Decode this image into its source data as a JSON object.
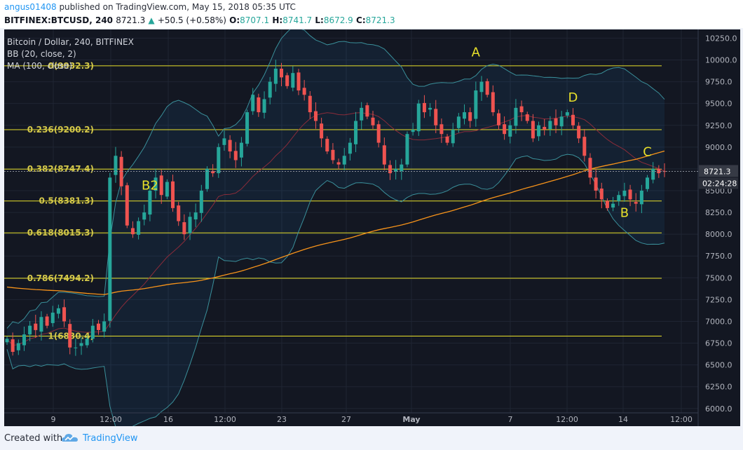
{
  "header": {
    "username": "angus01408",
    "published_text": "published on TradingView.com, May 15, 2018 05:35 UTC",
    "symbol": "BITFINEX:BTCUSD, 240",
    "last": "8721.3",
    "change": "+50.5 (+0.58%)",
    "o_label": "O:",
    "o": "8707.1",
    "h_label": "H:",
    "h": "8741.7",
    "l_label": "L:",
    "l": "8672.9",
    "c_label": "C:",
    "c": "8721.3"
  },
  "legend": {
    "title": "Bitcoin / Dollar, 240, BITFINEX",
    "bb": "BB (20, close, 2)",
    "ma": "MA (100, close)"
  },
  "price_axis": {
    "ticks": [
      "10250.0",
      "10000.0",
      "9750.0",
      "9500.0",
      "9250.0",
      "9000.0",
      "8750.0",
      "8500.0",
      "8250.0",
      "8000.0",
      "7750.0",
      "7500.0",
      "7250.0",
      "7000.0",
      "6750.0",
      "6500.0",
      "6250.0",
      "6000.0"
    ],
    "last_price": "8721.3",
    "countdown": "02:24:28"
  },
  "time_axis": {
    "ticks": [
      {
        "label": "9",
        "bold": false
      },
      {
        "label": "12:00",
        "bold": false
      },
      {
        "label": "16",
        "bold": false
      },
      {
        "label": "12:00",
        "bold": false
      },
      {
        "label": "23",
        "bold": false
      },
      {
        "label": "27",
        "bold": false
      },
      {
        "label": "May",
        "bold": true
      },
      {
        "label": "7",
        "bold": false
      },
      {
        "label": "12:00",
        "bold": false
      },
      {
        "label": "14",
        "bold": false
      },
      {
        "label": "12:00",
        "bold": false
      }
    ]
  },
  "fib_levels": [
    {
      "label": "0(9932.3)",
      "value": 9932.3
    },
    {
      "label": "0.236(9200.2)",
      "value": 9200.2
    },
    {
      "label": "0.382(8747.4)",
      "value": 8747.4
    },
    {
      "label": "0.5(8381.3)",
      "value": 8381.3
    },
    {
      "label": "0.618(8015.3)",
      "value": 8015.3
    },
    {
      "label": "0.786(7494.2)",
      "value": 7494.2
    },
    {
      "label": "1(6830.4)",
      "value": 6830.4
    }
  ],
  "wave_labels": [
    {
      "text": "A",
      "bar": 82,
      "value": 10040
    },
    {
      "text": "B2",
      "bar": 25,
      "value": 8510
    },
    {
      "text": "D",
      "bar": 99,
      "value": 9520
    },
    {
      "text": "B",
      "bar": 108,
      "value": 8200
    },
    {
      "text": "C",
      "bar": 112,
      "value": 8900
    }
  ],
  "chart_data": {
    "type": "candlestick",
    "ylim": [
      5950,
      10350
    ],
    "bar_count": 116,
    "close": [
      6800,
      6650,
      6750,
      6850,
      6950,
      6900,
      7050,
      6950,
      7100,
      7150,
      7000,
      6700,
      6700,
      6750,
      6800,
      6950,
      6900,
      7000,
      8650,
      8900,
      8550,
      8100,
      8000,
      8150,
      8250,
      8500,
      8650,
      8450,
      8600,
      8300,
      8150,
      8000,
      8200,
      8250,
      8500,
      8750,
      8700,
      9000,
      9100,
      8950,
      8850,
      9050,
      9400,
      9600,
      9400,
      9550,
      9750,
      9900,
      9800,
      9700,
      9850,
      9650,
      9600,
      9400,
      9300,
      9100,
      8950,
      8850,
      8800,
      8900,
      9050,
      9300,
      9450,
      9350,
      9250,
      9050,
      8800,
      8700,
      8750,
      8800,
      9150,
      9200,
      9500,
      9400,
      9450,
      9250,
      9150,
      9050,
      9200,
      9350,
      9400,
      9300,
      9650,
      9750,
      9600,
      9400,
      9250,
      9150,
      9250,
      9450,
      9400,
      9300,
      9100,
      9250,
      9200,
      9300,
      9250,
      9350,
      9400,
      9250,
      9100,
      8900,
      8650,
      8500,
      8400,
      8300,
      8350,
      8450,
      8500,
      8400,
      8350,
      8500,
      8650,
      8750,
      8700,
      8721
    ]
  }
}
